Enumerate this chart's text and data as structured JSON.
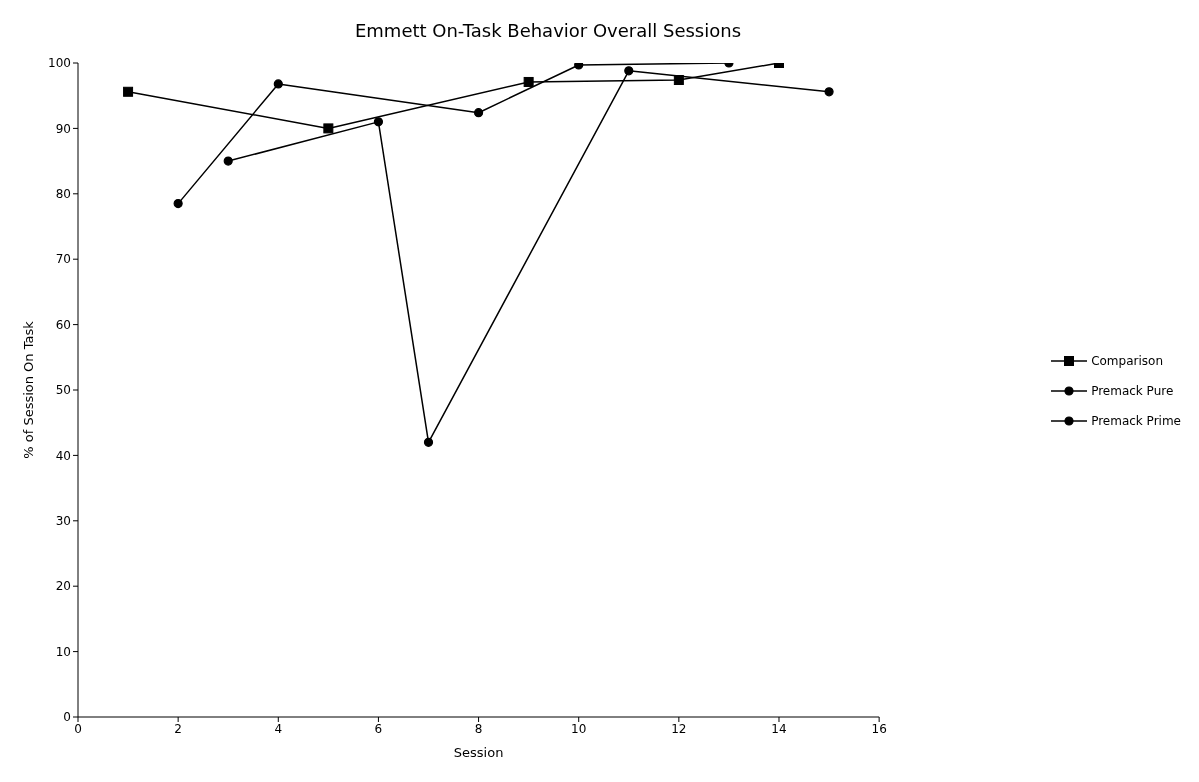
{
  "chart_data": {
    "type": "line",
    "title": "Emmett On-Task Behavior Overall Sessions",
    "xlabel": "Session",
    "ylabel": "% of Session On Task",
    "series": [
      {
        "name": "Comparison",
        "color": "#000000",
        "marker": "square",
        "x": [
          1,
          5,
          9,
          12,
          14
        ],
        "values": [
          95.6,
          90,
          97.1,
          97.4,
          100
        ]
      },
      {
        "name": "Premack Pure",
        "color": "#000000",
        "marker": "circle",
        "x": [
          3,
          6,
          7,
          11,
          15
        ],
        "values": [
          85,
          91,
          42,
          98.8,
          95.6
        ]
      },
      {
        "name": "Premack Prime",
        "color": "#000000",
        "marker": "circle",
        "x": [
          2,
          4,
          8,
          10,
          13
        ],
        "values": [
          78.5,
          96.8,
          92.4,
          99.7,
          100
        ]
      }
    ],
    "xlim": [
      0,
      16
    ],
    "xticks": [
      0,
      2,
      4,
      6,
      8,
      10,
      12,
      14,
      16
    ],
    "ylim": [
      0,
      100
    ],
    "yticks": [
      0,
      10,
      20,
      30,
      40,
      50,
      60,
      70,
      80,
      90,
      100
    ],
    "grid": false,
    "legend": "right",
    "line_style": "solid"
  }
}
